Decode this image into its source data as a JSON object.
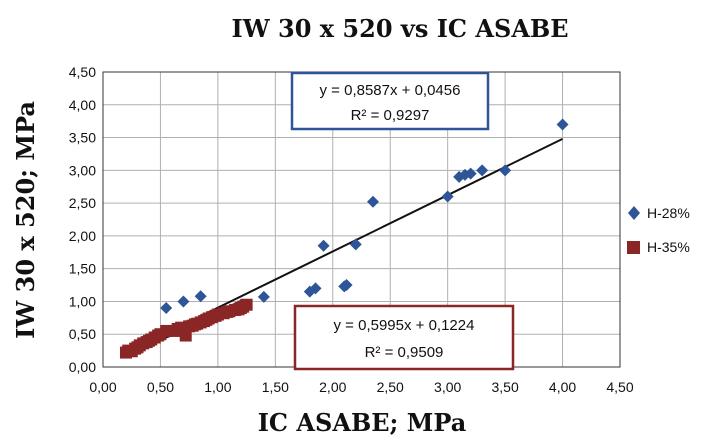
{
  "chart_data": {
    "type": "scatter",
    "title": "IW 30 x 520 vs IC ASABE",
    "xlabel": "IC ASABE; MPa",
    "ylabel": "IW 30 x 520; MPa",
    "xlim": [
      0,
      4.5
    ],
    "ylim": [
      0,
      4.5
    ],
    "x_ticks": [
      "0,00",
      "0,50",
      "1,00",
      "1,50",
      "2,00",
      "2,50",
      "3,00",
      "3,50",
      "4,00",
      "4,50"
    ],
    "y_ticks": [
      "0,00",
      "0,50",
      "1,00",
      "1,50",
      "2,00",
      "2,50",
      "3,00",
      "3,50",
      "4,00",
      "4,50"
    ],
    "grid": true,
    "legend_position": "right",
    "series": [
      {
        "name": "H-28%",
        "color": "#2e5597",
        "marker": "diamond",
        "points": [
          [
            0.2,
            0.25
          ],
          [
            0.25,
            0.28
          ],
          [
            0.3,
            0.3
          ],
          [
            0.35,
            0.35
          ],
          [
            0.4,
            0.4
          ],
          [
            0.45,
            0.43
          ],
          [
            0.55,
            0.9
          ],
          [
            0.7,
            1.0
          ],
          [
            0.85,
            1.08
          ],
          [
            0.75,
            0.62
          ],
          [
            0.8,
            0.66
          ],
          [
            0.9,
            0.72
          ],
          [
            0.95,
            0.75
          ],
          [
            1.0,
            0.8
          ],
          [
            1.05,
            0.82
          ],
          [
            1.1,
            0.85
          ],
          [
            1.15,
            0.9
          ],
          [
            1.2,
            0.95
          ],
          [
            1.4,
            1.07
          ],
          [
            1.8,
            1.15
          ],
          [
            1.85,
            1.2
          ],
          [
            2.1,
            1.23
          ],
          [
            2.12,
            1.25
          ],
          [
            1.92,
            1.85
          ],
          [
            2.2,
            1.87
          ],
          [
            2.35,
            2.52
          ],
          [
            3.0,
            2.6
          ],
          [
            3.1,
            2.9
          ],
          [
            3.15,
            2.93
          ],
          [
            3.2,
            2.95
          ],
          [
            3.3,
            3.0
          ],
          [
            3.5,
            3.0
          ],
          [
            4.0,
            3.7
          ]
        ]
      },
      {
        "name": "H-35%",
        "color": "#8b2626",
        "marker": "square",
        "points": [
          [
            0.2,
            0.22
          ],
          [
            0.22,
            0.25
          ],
          [
            0.25,
            0.24
          ],
          [
            0.28,
            0.28
          ],
          [
            0.3,
            0.3
          ],
          [
            0.32,
            0.33
          ],
          [
            0.35,
            0.36
          ],
          [
            0.38,
            0.38
          ],
          [
            0.4,
            0.4
          ],
          [
            0.42,
            0.42
          ],
          [
            0.45,
            0.45
          ],
          [
            0.48,
            0.48
          ],
          [
            0.5,
            0.5
          ],
          [
            0.55,
            0.55
          ],
          [
            0.62,
            0.55
          ],
          [
            0.65,
            0.58
          ],
          [
            0.68,
            0.6
          ],
          [
            0.72,
            0.48
          ],
          [
            0.75,
            0.62
          ],
          [
            0.78,
            0.63
          ],
          [
            0.8,
            0.65
          ],
          [
            0.82,
            0.66
          ],
          [
            0.85,
            0.68
          ],
          [
            0.88,
            0.7
          ],
          [
            0.9,
            0.72
          ],
          [
            0.92,
            0.74
          ],
          [
            0.95,
            0.76
          ],
          [
            0.98,
            0.78
          ],
          [
            1.0,
            0.8
          ],
          [
            1.05,
            0.82
          ],
          [
            1.08,
            0.84
          ],
          [
            1.1,
            0.85
          ],
          [
            1.15,
            0.87
          ],
          [
            1.18,
            0.88
          ],
          [
            1.2,
            0.9
          ],
          [
            1.22,
            0.92
          ],
          [
            1.25,
            0.95
          ]
        ]
      }
    ],
    "trendlines": [
      {
        "slope": 0.8587,
        "intercept": 0.0456,
        "x_range": [
          0.2,
          4.0
        ],
        "color": "#111111"
      },
      {
        "slope": 0.5995,
        "intercept": 0.1224,
        "x_range": [
          0.2,
          1.25
        ],
        "color": "#111111"
      }
    ],
    "annotations": [
      {
        "line1": "y = 0,8587x + 0,0456",
        "line2": "R² = 0,9297",
        "border_color": "#2e5597"
      },
      {
        "line1": "y = 0,5995x + 0,1224",
        "line2": "R² = 0,9509",
        "border_color": "#8b2626"
      }
    ]
  }
}
